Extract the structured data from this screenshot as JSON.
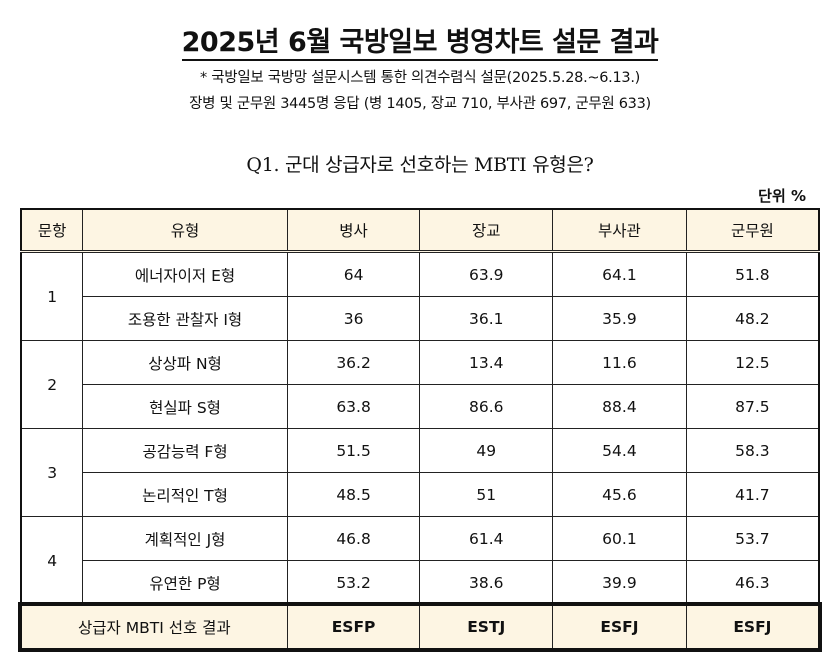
{
  "title": "2025년 6월 국방일보 병영차트 설문 결과",
  "subtitle1": "* 국방일보 국방망 설문시스템 통한 의견수렴식 설문(2025.5.28.~6.13.)",
  "subtitle2": "장병 및 군무원 3445명 응답 (병 1405, 장교 710, 부사관 697, 군무원 633)",
  "question": "Q1. 군대 상급자로 선호하는 MBTI 유형은?",
  "unit": "단위 %",
  "headers": [
    "문항",
    "유형",
    "병사",
    "장교",
    "부사관",
    "군무원"
  ],
  "groups": [
    {
      "no": "1",
      "rows": [
        {
          "type": "에너자이저 E형",
          "v": [
            "64",
            "63.9",
            "64.1",
            "51.8"
          ]
        },
        {
          "type": "조용한 관찰자 I형",
          "v": [
            "36",
            "36.1",
            "35.9",
            "48.2"
          ]
        }
      ]
    },
    {
      "no": "2",
      "rows": [
        {
          "type": "상상파 N형",
          "v": [
            "36.2",
            "13.4",
            "11.6",
            "12.5"
          ]
        },
        {
          "type": "현실파 S형",
          "v": [
            "63.8",
            "86.6",
            "88.4",
            "87.5"
          ]
        }
      ]
    },
    {
      "no": "3",
      "rows": [
        {
          "type": "공감능력 F형",
          "v": [
            "51.5",
            "49",
            "54.4",
            "58.3"
          ]
        },
        {
          "type": "논리적인 T형",
          "v": [
            "48.5",
            "51",
            "45.6",
            "41.7"
          ]
        }
      ]
    },
    {
      "no": "4",
      "rows": [
        {
          "type": "계획적인 J형",
          "v": [
            "46.8",
            "61.4",
            "60.1",
            "53.7"
          ]
        },
        {
          "type": "유연한 P형",
          "v": [
            "53.2",
            "38.6",
            "39.9",
            "46.3"
          ]
        }
      ]
    }
  ],
  "result": {
    "label": "상급자 MBTI 선호 결과",
    "v": [
      "ESFP",
      "ESTJ",
      "ESFJ",
      "ESFJ"
    ]
  }
}
